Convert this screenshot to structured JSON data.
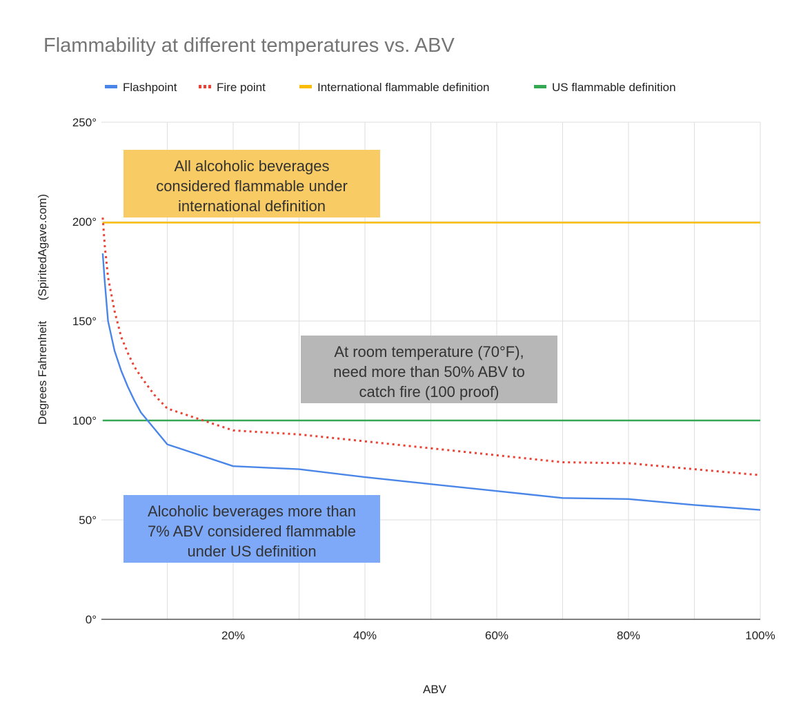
{
  "chart_data": {
    "type": "line",
    "title": "Flammability at different temperatures vs. ABV",
    "xlabel": "ABV",
    "ylabel": "Degrees Fahrenheit",
    "ylabel_secondary": "(SpiritedAgave.com)",
    "xlim": [
      0,
      100
    ],
    "ylim": [
      0,
      250
    ],
    "x_ticks": [
      {
        "value": 20,
        "label": "20%"
      },
      {
        "value": 40,
        "label": "40%"
      },
      {
        "value": 60,
        "label": "60%"
      },
      {
        "value": 80,
        "label": "80%"
      },
      {
        "value": 100,
        "label": "100%"
      }
    ],
    "y_ticks": [
      {
        "value": 0,
        "label": "0°"
      },
      {
        "value": 50,
        "label": "50°"
      },
      {
        "value": 100,
        "label": "100°"
      },
      {
        "value": 150,
        "label": "150°"
      },
      {
        "value": 200,
        "label": "200°"
      },
      {
        "value": 250,
        "label": "250°"
      }
    ],
    "grid": true,
    "legend_position": "top-left",
    "series": [
      {
        "name": "Flashpoint",
        "color": "#4a86e8",
        "style": "solid",
        "points": [
          [
            0.2,
            184
          ],
          [
            0.5,
            170
          ],
          [
            1,
            150
          ],
          [
            2,
            135
          ],
          [
            3,
            125
          ],
          [
            4,
            117
          ],
          [
            5,
            110
          ],
          [
            6,
            104
          ],
          [
            8,
            96
          ],
          [
            10,
            88
          ],
          [
            20,
            77
          ],
          [
            30,
            75.5
          ],
          [
            40,
            71.5
          ],
          [
            50,
            68
          ],
          [
            60,
            64.5
          ],
          [
            70,
            61
          ],
          [
            80,
            60.5
          ],
          [
            90,
            57.5
          ],
          [
            100,
            55
          ]
        ]
      },
      {
        "name": "Fire point",
        "color": "#ea4335",
        "style": "dotted",
        "points": [
          [
            0.2,
            202
          ],
          [
            0.5,
            188
          ],
          [
            1,
            172
          ],
          [
            2,
            155
          ],
          [
            3,
            142
          ],
          [
            4,
            134
          ],
          [
            5,
            127
          ],
          [
            6,
            122
          ],
          [
            8,
            113
          ],
          [
            10,
            106
          ],
          [
            20,
            95
          ],
          [
            30,
            93
          ],
          [
            40,
            89.5
          ],
          [
            50,
            86
          ],
          [
            60,
            82.5
          ],
          [
            70,
            79
          ],
          [
            80,
            78.5
          ],
          [
            90,
            75.5
          ],
          [
            100,
            72.5
          ]
        ]
      },
      {
        "name": "International flammable definition",
        "color": "#fbbc04",
        "style": "solid",
        "points": [
          [
            0.2,
            199.5
          ],
          [
            100,
            199.5
          ]
        ]
      },
      {
        "name": "US flammable definition",
        "color": "#34a853",
        "style": "solid",
        "points": [
          [
            0.2,
            100
          ],
          [
            100,
            100
          ]
        ]
      }
    ],
    "annotations": [
      {
        "lines": [
          "All alcoholic beverages",
          "considered flammable under",
          "international definition"
        ],
        "fill": "#f9cb64"
      },
      {
        "lines": [
          "At room temperature (70°F),",
          "need more than 50% ABV to",
          "catch fire (100 proof)"
        ],
        "fill": "#b7b7b7"
      },
      {
        "lines": [
          "Alcoholic beverages more than",
          "7% ABV considered flammable",
          "under US definition"
        ],
        "fill": "#7ea8f8"
      }
    ]
  }
}
